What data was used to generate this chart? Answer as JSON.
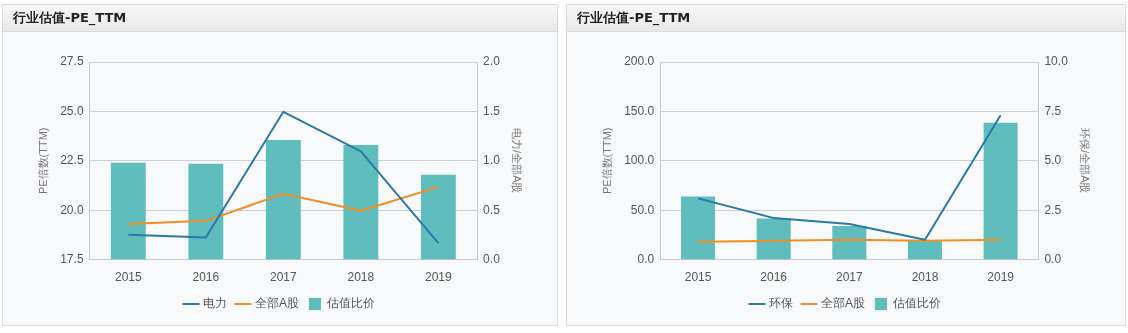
{
  "chart_data": [
    {
      "type": "bar",
      "title": "行业估值-PE_TTM",
      "ylabel": "PE倍数(TTM)",
      "y2label": "电力/全部A股",
      "categories": [
        "2015",
        "2016",
        "2017",
        "2018",
        "2019"
      ],
      "series": [
        {
          "name": "电力",
          "type": "line",
          "color": "#2b79a8",
          "values": [
            18.76,
            18.62,
            24.98,
            22.98,
            18.33
          ]
        },
        {
          "name": "全部A股",
          "type": "line",
          "color": "#f28e21",
          "values": [
            19.3,
            19.46,
            20.83,
            19.97,
            21.18
          ]
        },
        {
          "name": "估值比价",
          "axis": "y2",
          "color": "#5fbdbe",
          "values": [
            0.98,
            0.97,
            1.21,
            1.16,
            0.86
          ]
        }
      ],
      "ylim": [
        17.5,
        27.5
      ],
      "yticks": [
        17.5,
        {
          "value": 20,
          "label": "20.0"
        },
        22.5,
        {
          "value": 25,
          "label": "25.0"
        },
        27.5
      ],
      "y2lim": [
        0,
        2
      ],
      "y2ticks": [
        {
          "value": 0,
          "label": "0.0"
        },
        0.5,
        {
          "value": 1,
          "label": "1.0"
        },
        1.5,
        {
          "value": 2,
          "label": "2.0"
        }
      ],
      "grid": "y",
      "legend": "bottom"
    },
    {
      "type": "bar",
      "title": "行业估值-PE_TTM",
      "ylabel": "PE倍数(TTM)",
      "y2label": "环保/全部A股",
      "categories": [
        "2015",
        "2016",
        "2017",
        "2018",
        "2019"
      ],
      "series": [
        {
          "name": "环保",
          "type": "line",
          "color": "#2b79a8",
          "values": [
            62,
            42,
            36,
            20,
            146
          ]
        },
        {
          "name": "全部A股",
          "type": "line",
          "color": "#f28e21",
          "values": [
            18,
            19,
            20,
            19,
            20
          ]
        },
        {
          "name": "估值比价",
          "axis": "y2",
          "color": "#5fbdbe",
          "values": [
            3.19,
            2.08,
            1.7,
            0.94,
            6.92
          ]
        }
      ],
      "ylim": [
        0,
        200
      ],
      "yticks": [
        {
          "value": 0,
          "label": "0.0"
        },
        {
          "value": 50,
          "label": "50.0"
        },
        {
          "value": 100,
          "label": "100.0"
        },
        {
          "value": 150,
          "label": "150.0"
        },
        {
          "value": 200,
          "label": "200.0"
        }
      ],
      "y2lim": [
        0,
        10
      ],
      "y2ticks": [
        {
          "value": 0,
          "label": "0.0"
        },
        2.5,
        {
          "value": 5,
          "label": "5.0"
        },
        7.5,
        {
          "value": 10,
          "label": "10.0"
        }
      ],
      "grid": "y",
      "legend": "bottom"
    }
  ]
}
